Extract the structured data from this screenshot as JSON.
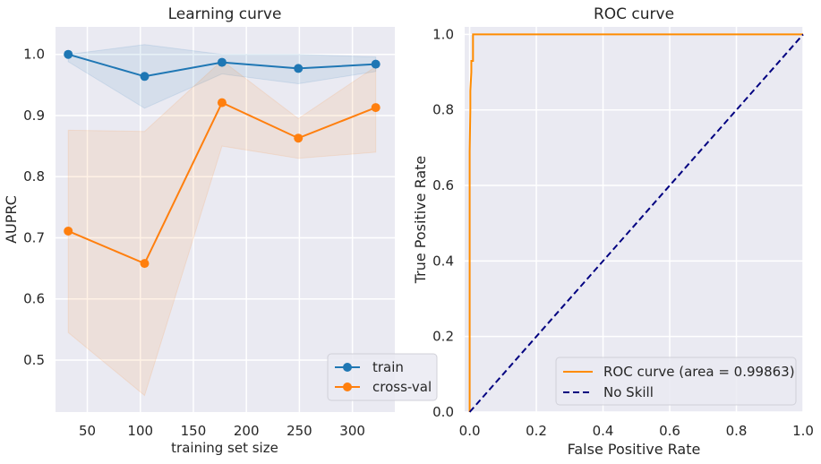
{
  "chart_data": [
    {
      "type": "line",
      "title": "Learning curve",
      "xlabel": "training set size",
      "ylabel": "AUPRC",
      "xlim": [
        20,
        340
      ],
      "ylim": [
        0.415,
        1.045
      ],
      "xticks": [
        50,
        100,
        150,
        200,
        250,
        300
      ],
      "yticks": [
        0.5,
        0.6,
        0.7,
        0.8,
        0.9,
        1.0
      ],
      "xtick_labels": [
        "50",
        "100",
        "150",
        "200",
        "250",
        "300"
      ],
      "ytick_labels": [
        "0.5",
        "0.6",
        "0.7",
        "0.8",
        "0.9",
        "1.0"
      ],
      "x": [
        32,
        104,
        177,
        249,
        322
      ],
      "series": [
        {
          "name": "train",
          "color": "#1f77b4",
          "values": [
            1.0,
            0.964,
            0.987,
            0.977,
            0.984
          ],
          "lower": [
            0.988,
            0.912,
            0.968,
            0.952,
            0.972
          ],
          "upper": [
            1.0,
            1.016,
            1.0,
            1.0,
            0.996
          ]
        },
        {
          "name": "cross-val",
          "color": "#ff7f0e",
          "values": [
            0.711,
            0.658,
            0.921,
            0.863,
            0.913
          ],
          "lower": [
            0.545,
            0.442,
            0.85,
            0.83,
            0.84
          ],
          "upper": [
            0.876,
            0.874,
            0.99,
            0.895,
            0.98
          ]
        }
      ],
      "grid": true,
      "legend_position": "lower-right",
      "background": "#eaeaf2"
    },
    {
      "type": "line",
      "title": "ROC curve",
      "xlabel": "False Positive Rate",
      "ylabel": "True Positive Rate",
      "xlim": [
        -0.015,
        1.0
      ],
      "ylim": [
        0.0,
        1.02
      ],
      "xticks": [
        0.0,
        0.2,
        0.4,
        0.6,
        0.8,
        1.0
      ],
      "yticks": [
        0.0,
        0.2,
        0.4,
        0.6,
        0.8,
        1.0
      ],
      "xtick_labels": [
        "0.0",
        "0.2",
        "0.4",
        "0.6",
        "0.8",
        "1.0"
      ],
      "ytick_labels": [
        "0.0",
        "0.2",
        "0.4",
        "0.6",
        "0.8",
        "1.0"
      ],
      "series": [
        {
          "name": "ROC curve (area = 0.99863)",
          "color": "darkorange",
          "style": "solid",
          "x": [
            0.0,
            0.0,
            0.0,
            0.002,
            0.002,
            0.005,
            0.005,
            0.01,
            0.01,
            1.0
          ],
          "y": [
            0.0,
            0.45,
            0.69,
            0.8,
            0.85,
            0.9,
            0.93,
            0.93,
            1.0,
            1.0
          ]
        },
        {
          "name": "No Skill",
          "color": "navy",
          "style": "dashed",
          "x": [
            0.0,
            1.0
          ],
          "y": [
            0.0,
            1.0
          ]
        }
      ],
      "grid": true,
      "legend_position": "lower-right",
      "background": "#eaeaf2"
    }
  ]
}
